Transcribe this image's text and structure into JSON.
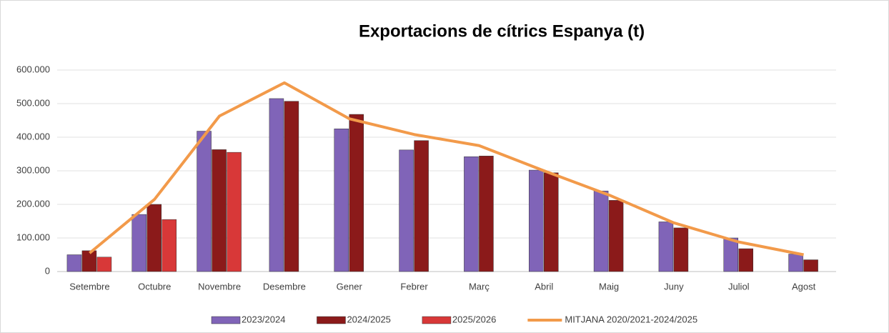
{
  "chart_data": {
    "type": "bar",
    "title": "Exportacions de cítrics Espanya (t)",
    "categories": [
      "Setembre",
      "Octubre",
      "Novembre",
      "Desembre",
      "Gener",
      "Febrer",
      "Març",
      "Abril",
      "Maig",
      "Juny",
      "Juliol",
      "Agost"
    ],
    "series": [
      {
        "name": "2023/2024",
        "color": "#8064b8",
        "type": "bar",
        "values": [
          50000,
          170000,
          418000,
          515000,
          425000,
          362000,
          342000,
          302000,
          240000,
          148000,
          100000,
          52000
        ]
      },
      {
        "name": "2024/2025",
        "color": "#8b1a1a",
        "type": "bar",
        "values": [
          62000,
          200000,
          363000,
          507000,
          468000,
          390000,
          344000,
          294000,
          212000,
          130000,
          68000,
          35000
        ]
      },
      {
        "name": "2025/2026",
        "color": "#d83838",
        "type": "bar",
        "values": [
          43000,
          155000,
          355000,
          null,
          null,
          null,
          null,
          null,
          null,
          null,
          null,
          null
        ]
      },
      {
        "name": "MITJANA 2020/2021-2024/2025",
        "color": "#f29a4a",
        "type": "line",
        "values": [
          55000,
          215000,
          463000,
          562000,
          455000,
          408000,
          375000,
          300000,
          228000,
          145000,
          88000,
          50000
        ]
      }
    ],
    "ylim": [
      0,
      600000
    ],
    "yticks": [
      0,
      {
        "value": 100000,
        "label": "100.000"
      },
      {
        "value": 200000,
        "label": "200.000"
      },
      {
        "value": 300000,
        "label": "300.000"
      },
      {
        "value": 400000,
        "label": "400.000"
      },
      {
        "value": 500000,
        "label": "500.000"
      },
      {
        "value": 600000,
        "label": "600.000"
      }
    ],
    "grid": true,
    "legend": "bottom"
  }
}
